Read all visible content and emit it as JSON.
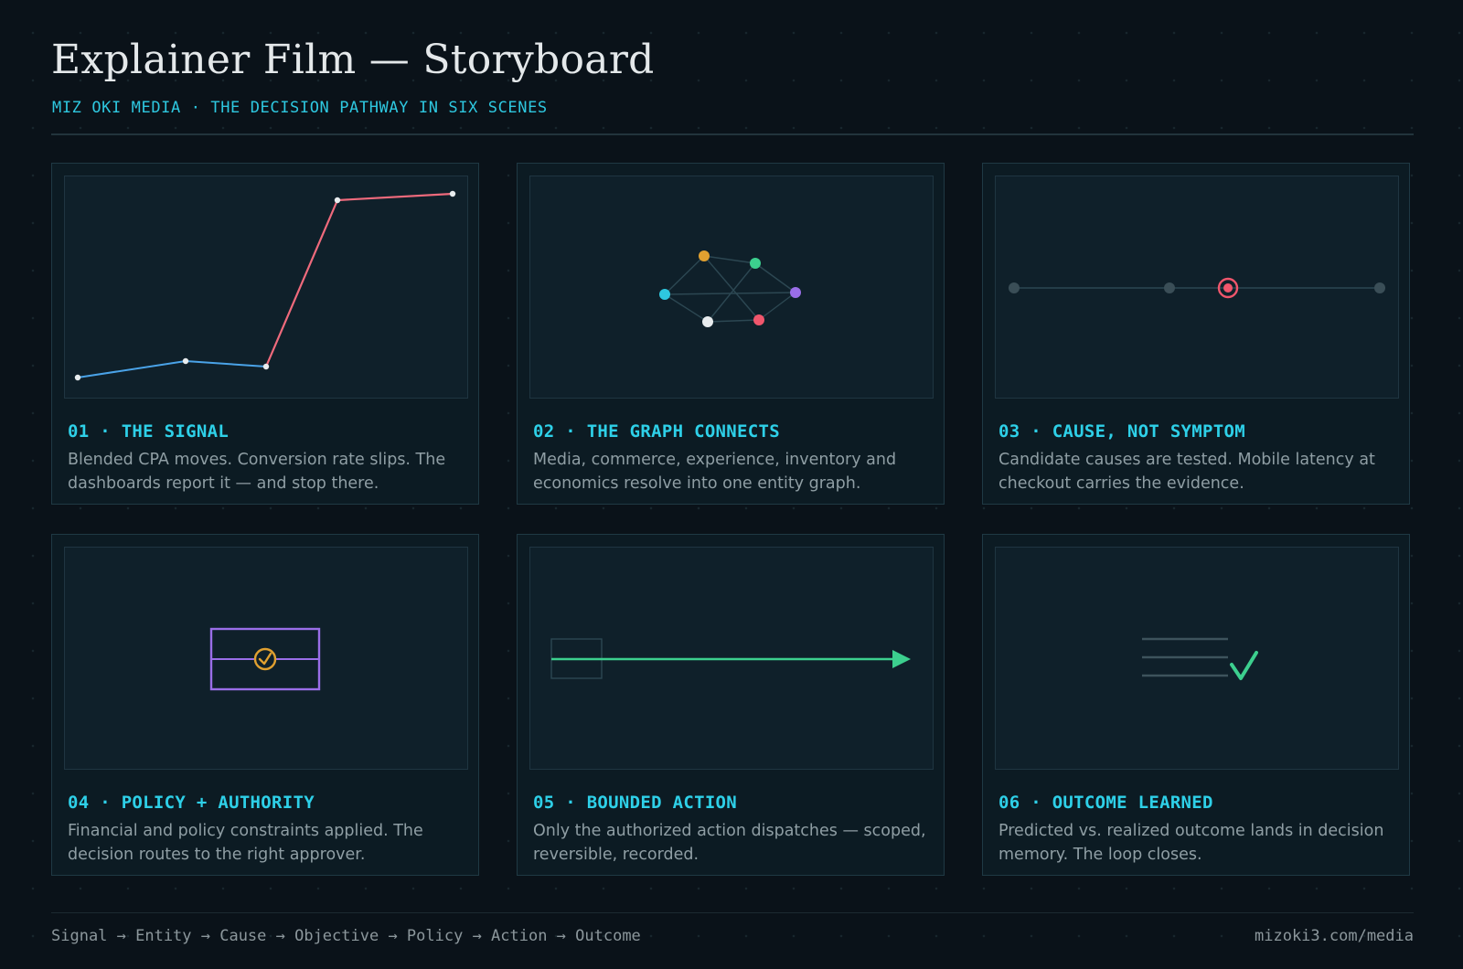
{
  "header": {
    "title": "Explainer Film — Storyboard",
    "subtitle": "MIZ OKI MEDIA · THE DECISION PATHWAY IN SIX SCENES"
  },
  "scenes": [
    {
      "title": "01 · THE SIGNAL",
      "description": "Blended CPA moves. Conversion rate slips. The dashboards report it — and stop there."
    },
    {
      "title": "02 · THE GRAPH CONNECTS",
      "description": "Media, commerce, experience, inventory and economics resolve into one entity graph."
    },
    {
      "title": "03 · CAUSE, NOT SYMPTOM",
      "description": "Candidate causes are tested. Mobile latency at checkout carries the evidence."
    },
    {
      "title": "04 · POLICY + AUTHORITY",
      "description": "Financial and policy constraints applied. The decision routes to the right approver."
    },
    {
      "title": "05 · BOUNDED ACTION",
      "description": "Only the authorized action dispatches — scoped, reversible, recorded."
    },
    {
      "title": "06 · OUTCOME LEARNED",
      "description": "Predicted vs. realized outcome lands in decision memory. The loop closes."
    }
  ],
  "footer": {
    "pathway": "Signal → Entity → Cause → Objective → Policy → Action → Outcome",
    "url": "mizoki3.com/media"
  },
  "colors": {
    "accent": "#2ed0e8",
    "signal_baseline": "#4aa3e8",
    "signal_spike": "#ef6a7c",
    "node_orange": "#e0a030",
    "node_green": "#3ccf8e",
    "node_cyan": "#2ec8e0",
    "node_purple": "#9a6ee8",
    "node_white": "#e8ecee",
    "node_red": "#f0566c",
    "policy_frame": "#9a6ee8",
    "approval_badge": "#e0a030",
    "action_arrow": "#3ccf8e",
    "check": "#3ccf8e"
  },
  "icons": [
    "line-chart-icon",
    "entity-graph-icon",
    "cause-timeline-icon",
    "policy-gate-icon",
    "action-arrow-icon",
    "checklist-icon"
  ]
}
